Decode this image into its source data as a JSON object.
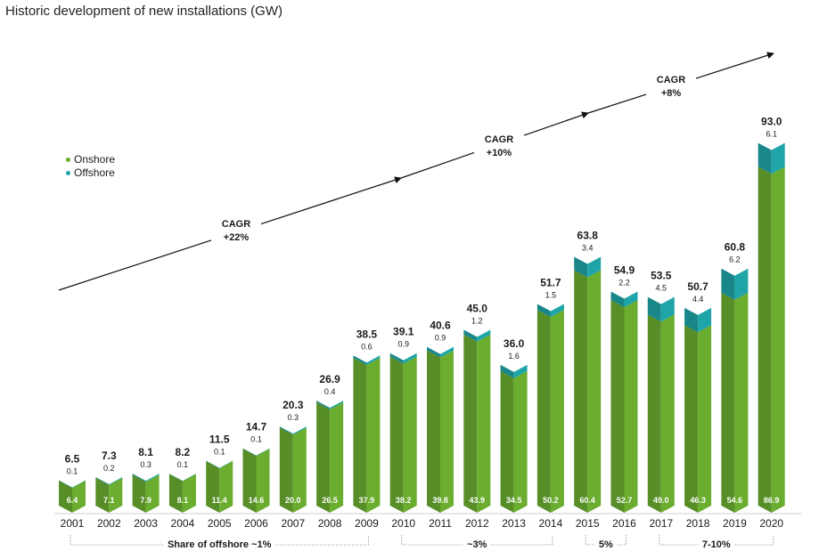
{
  "chart_data": {
    "type": "bar",
    "stacked": true,
    "title": "Historic development of new installations (GW)",
    "categories": [
      "2001",
      "2002",
      "2003",
      "2004",
      "2005",
      "2006",
      "2007",
      "2008",
      "2009",
      "2010",
      "2011",
      "2012",
      "2013",
      "2014",
      "2015",
      "2016",
      "2017",
      "2018",
      "2019",
      "2020"
    ],
    "series": [
      {
        "name": "Onshore",
        "color": "#6aad2f",
        "values": [
          6.4,
          7.1,
          7.9,
          8.1,
          11.4,
          14.6,
          20.0,
          26.5,
          37.9,
          38.2,
          39.8,
          43.9,
          34.5,
          50.2,
          60.4,
          52.7,
          49.0,
          46.3,
          54.6,
          86.9
        ],
        "labels": [
          "6.4",
          "7.1",
          "7.9",
          "8.1",
          "11.4",
          "14.6",
          "20.0",
          "26.5",
          "37.9",
          "38.2",
          "39.8",
          "43.9",
          "34.5",
          "50.2",
          "60.4",
          "52.7",
          "49.0",
          "46.3",
          "54.6",
          "86.9"
        ]
      },
      {
        "name": "Offshore",
        "color": "#1fa5a8",
        "values": [
          0.1,
          0.2,
          0.3,
          0.1,
          0.1,
          0.1,
          0.3,
          0.4,
          0.6,
          0.9,
          0.9,
          1.2,
          1.6,
          1.5,
          3.4,
          2.2,
          4.5,
          4.4,
          6.2,
          6.1
        ],
        "labels": [
          "0.1",
          "0.2",
          "0.3",
          "0.1",
          "0.1",
          "0.1",
          "0.3",
          "0.4",
          "0.6",
          "0.9",
          "0.9",
          "1.2",
          "1.6",
          "1.5",
          "3.4",
          "2.2",
          "4.5",
          "4.4",
          "6.2",
          "6.1"
        ]
      }
    ],
    "totals": [
      6.5,
      7.3,
      8.1,
      8.2,
      11.5,
      14.7,
      20.3,
      26.9,
      38.5,
      39.1,
      40.6,
      45.0,
      36.0,
      51.7,
      63.8,
      54.9,
      53.5,
      50.7,
      60.8,
      93.0
    ],
    "total_labels": [
      "6.5",
      "7.3",
      "8.1",
      "8.2",
      "11.5",
      "14.7",
      "20.3",
      "26.9",
      "38.5",
      "39.1",
      "40.6",
      "45.0",
      "36.0",
      "51.7",
      "63.8",
      "54.9",
      "53.5",
      "50.7",
      "60.8",
      "93.0"
    ],
    "ylim": [
      0,
      100
    ],
    "legend": [
      "Onshore",
      "Offshore"
    ],
    "cagr": [
      {
        "label": "CAGR",
        "value": "+22%"
      },
      {
        "label": "CAGR",
        "value": "+10%"
      },
      {
        "label": "CAGR",
        "value": "+8%"
      }
    ],
    "offshore_share": [
      {
        "text": "Share of offshore ~1%",
        "from": "2001",
        "to": "2009"
      },
      {
        "text": "~3%",
        "from": "2010",
        "to": "2014"
      },
      {
        "text": "5%",
        "from": "2015",
        "to": "2016"
      },
      {
        "text": "7-10%",
        "from": "2017",
        "to": "2020"
      }
    ]
  }
}
